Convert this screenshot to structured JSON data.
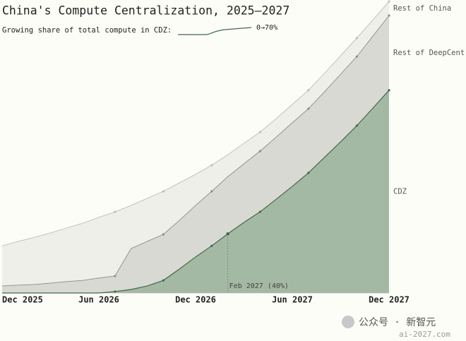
{
  "chart_data": {
    "type": "stacked_area",
    "title": "China's Compute Centralization, 2025–2027",
    "subtitle": "Growing share of total compute in CDZ:",
    "subtitle_range": "0→70%",
    "annotation": "Feb 2027 (40%)",
    "categories": [
      "Dec 2025",
      null,
      null,
      null,
      null,
      null,
      "Jun 2026",
      null,
      null,
      null,
      null,
      null,
      "Dec 2026",
      null,
      null,
      null,
      null,
      null,
      "Jun 2027",
      null,
      null,
      null,
      null,
      null,
      "Dec 2027"
    ],
    "ylim": [
      0,
      100
    ],
    "series": [
      {
        "name": "CDZ",
        "color": "#a4b9a4",
        "line_color": "#3d6b47",
        "values": [
          0,
          0,
          0,
          0,
          0,
          0,
          0,
          0.5,
          1.2,
          2.4,
          4.3,
          8.2,
          12.3,
          16.1,
          20.2,
          24.1,
          27.7,
          32,
          36.4,
          41,
          46.3,
          51.6,
          57.1,
          63.1,
          69.2
        ]
      },
      {
        "name": "Rest of DeepCent",
        "color": "#d9d9d3",
        "line_color": "#8c8c88",
        "values": [
          2.4,
          2.7,
          2.9,
          3.4,
          3.9,
          4.3,
          5.1,
          5.3,
          14,
          15.2,
          15.7,
          16.6,
          17.6,
          18.6,
          19.5,
          20,
          20.7,
          21.2,
          21.7,
          21.9,
          22.4,
          23.1,
          23.6,
          24.6,
          25.5
        ]
      },
      {
        "name": "Rest of China",
        "color": "#efefea",
        "line_color": "#bdbdb8",
        "values": [
          13.7,
          14.9,
          16.1,
          17.1,
          18.3,
          19.5,
          20.7,
          21.9,
          14.7,
          14.7,
          14.7,
          12.8,
          10.6,
          8.9,
          7.5,
          7,
          6.5,
          6.3,
          6.3,
          6.3,
          6.3,
          6.3,
          6.3,
          5.5,
          4.8
        ]
      }
    ]
  },
  "watermark": {
    "source": "公众号 · 新智元",
    "site": "ai-2027.com"
  }
}
